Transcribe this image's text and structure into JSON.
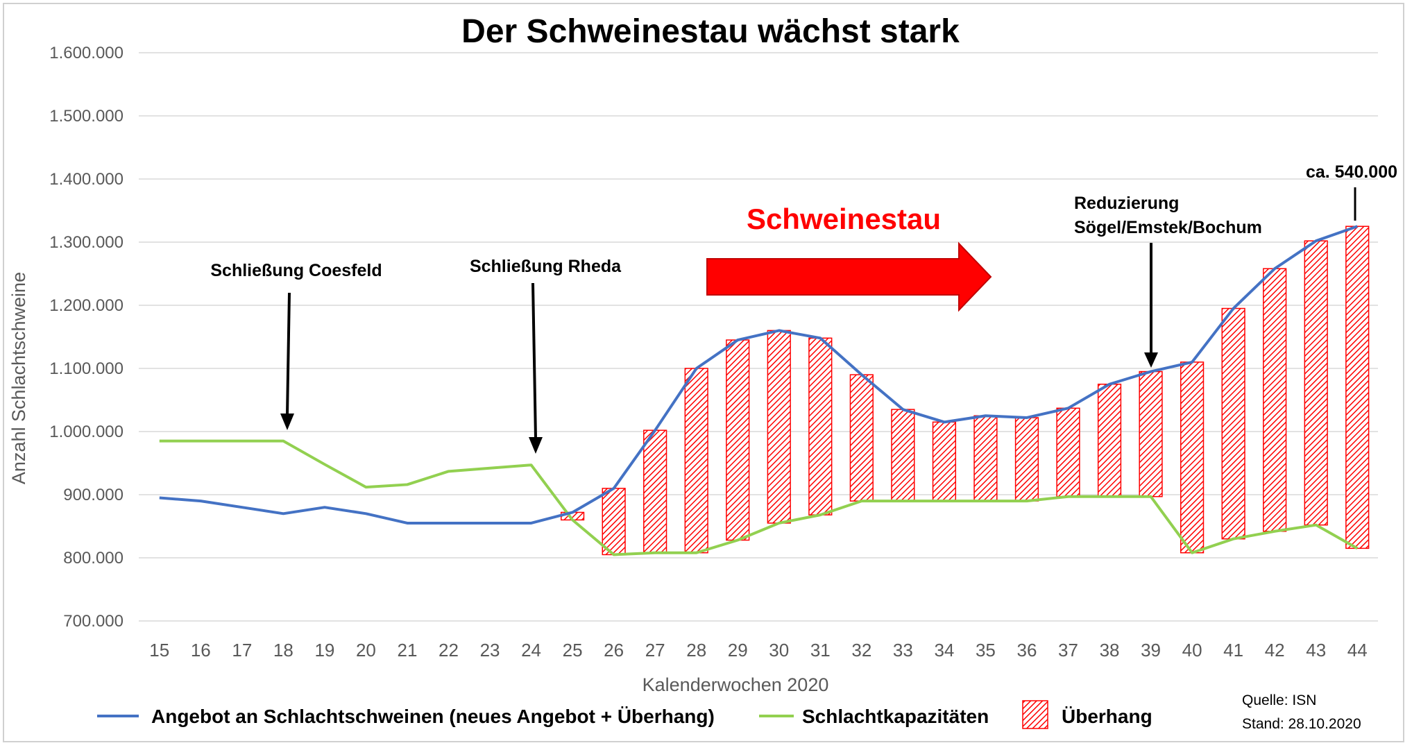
{
  "chart_data": {
    "type": "line",
    "title": "Der Schweinestau wächst stark",
    "xlabel": "Kalenderwochen 2020",
    "ylabel": "Anzahl Schlachtschweine",
    "ylim": [
      700000,
      1600000
    ],
    "y_ticks": [
      700000,
      800000,
      900000,
      1000000,
      1100000,
      1200000,
      1300000,
      1400000,
      1500000,
      1600000
    ],
    "y_tick_labels": [
      "700.000",
      "800.000",
      "900.000",
      "1.000.000",
      "1.100.000",
      "1.200.000",
      "1.300.000",
      "1.400.000",
      "1.500.000",
      "1.600.000"
    ],
    "grid": true,
    "legend_position": "bottom",
    "x": [
      15,
      16,
      17,
      18,
      19,
      20,
      21,
      22,
      23,
      24,
      25,
      26,
      27,
      28,
      29,
      30,
      31,
      32,
      33,
      34,
      35,
      36,
      37,
      38,
      39,
      40,
      41,
      42,
      43,
      44
    ],
    "x_tick_labels": [
      "15",
      "16",
      "17",
      "18",
      "19",
      "20",
      "21",
      "22",
      "23",
      "24",
      "25",
      "26",
      "27",
      "28",
      "29",
      "30",
      "31",
      "32",
      "33",
      "34",
      "35",
      "36",
      "37",
      "38",
      "39",
      "40",
      "41",
      "42",
      "43",
      "44"
    ],
    "series": [
      {
        "name": "Angebot an Schlachtschweinen (neues Angebot + Überhang)",
        "color": "#4472c4",
        "values": [
          895000,
          890000,
          880000,
          870000,
          880000,
          870000,
          855000,
          855000,
          855000,
          855000,
          872000,
          910000,
          1002000,
          1100000,
          1145000,
          1160000,
          1148000,
          1090000,
          1035000,
          1015000,
          1025000,
          1022000,
          1037000,
          1075000,
          1095000,
          1110000,
          1195000,
          1258000,
          1302000,
          1325000
        ]
      },
      {
        "name": "Schlachtkapazitäten",
        "color": "#92d050",
        "values": [
          985000,
          985000,
          985000,
          985000,
          948000,
          912000,
          916000,
          937000,
          942000,
          947000,
          860000,
          805000,
          808000,
          808000,
          828000,
          855000,
          868000,
          890000,
          890000,
          890000,
          890000,
          890000,
          897000,
          897000,
          897000,
          808000,
          830000,
          842000,
          852000,
          815000
        ]
      },
      {
        "name": "Überhang",
        "color": "#ff0000",
        "type": "range-bar",
        "start_week": 25
      }
    ],
    "annotations": [
      {
        "text": "Schließung Coesfeld",
        "week": 18
      },
      {
        "text": "Schließung Rheda",
        "week": 24
      },
      {
        "text": "Schweinestau",
        "color": "#ff0000"
      },
      {
        "text_line1": "Reduzierung",
        "text_line2": "Sögel/Emstek/Bochum",
        "week": 39
      },
      {
        "text": "ca. 540.000",
        "week": 44
      }
    ],
    "source": {
      "line1": "Quelle: ISN",
      "line2": "Stand: 28.10.2020"
    }
  }
}
